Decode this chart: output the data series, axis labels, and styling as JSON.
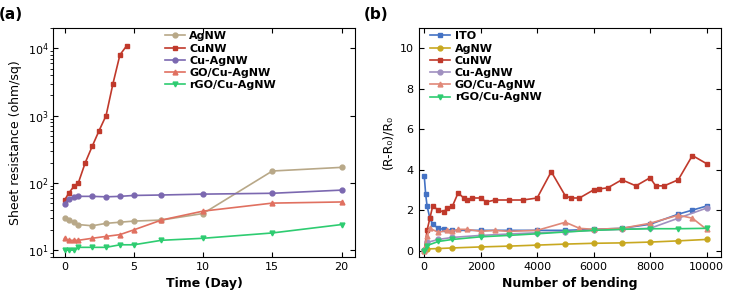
{
  "panel_a": {
    "title": "(a)",
    "xlabel": "Time (Day)",
    "ylabel": "Sheet resistance (ohm/sq)",
    "series": {
      "AgNW": {
        "color": "#b8a888",
        "marker": "o",
        "markersize": 3.5,
        "linestyle": "-",
        "linewidth": 1.2,
        "x": [
          0,
          0.3,
          0.7,
          1,
          2,
          3,
          4,
          5,
          7,
          10,
          15,
          20
        ],
        "y": [
          30,
          28,
          26,
          24,
          23,
          25,
          26,
          27,
          28,
          35,
          150,
          170
        ]
      },
      "CuNW": {
        "color": "#c0392b",
        "marker": "s",
        "markersize": 3.5,
        "linestyle": "-",
        "linewidth": 1.2,
        "x": [
          0,
          0.3,
          0.7,
          1,
          1.5,
          2,
          2.5,
          3,
          3.5,
          4,
          4.5
        ],
        "y": [
          55,
          70,
          90,
          100,
          200,
          350,
          600,
          1000,
          3000,
          8000,
          11000
        ]
      },
      "Cu-AgNW": {
        "color": "#7b68b0",
        "marker": "o",
        "markersize": 3.5,
        "linestyle": "-",
        "linewidth": 1.2,
        "x": [
          0,
          0.3,
          0.7,
          1,
          2,
          3,
          4,
          5,
          7,
          10,
          15,
          20
        ],
        "y": [
          48,
          58,
          62,
          63,
          63,
          62,
          63,
          65,
          66,
          68,
          70,
          78
        ]
      },
      "GO/Cu-AgNW": {
        "color": "#e07060",
        "marker": "^",
        "markersize": 3.5,
        "linestyle": "-",
        "linewidth": 1.2,
        "x": [
          0,
          0.3,
          0.7,
          1,
          2,
          3,
          4,
          5,
          7,
          10,
          15,
          20
        ],
        "y": [
          15,
          14,
          14,
          14,
          15,
          16,
          17,
          20,
          28,
          38,
          50,
          52
        ]
      },
      "rGO/Cu-AgNW": {
        "color": "#2ecc71",
        "marker": "v",
        "markersize": 3.5,
        "linestyle": "-",
        "linewidth": 1.2,
        "x": [
          0,
          0.3,
          0.7,
          1,
          2,
          3,
          4,
          5,
          7,
          10,
          15,
          20
        ],
        "y": [
          10,
          10,
          10,
          11,
          11,
          11,
          12,
          12,
          14,
          15,
          18,
          24
        ]
      }
    }
  },
  "panel_b": {
    "title": "(b)",
    "xlabel": "Number of bending",
    "ylabel": "(R-R₀)/R₀",
    "ylim": [
      -0.3,
      11
    ],
    "yticks": [
      0,
      2,
      4,
      6,
      8,
      10
    ],
    "xlim": [
      -200,
      10500
    ],
    "xticks": [
      0,
      2000,
      4000,
      6000,
      8000,
      10000
    ],
    "series": {
      "ITO": {
        "color": "#4472c4",
        "marker": "s",
        "markersize": 3.5,
        "linestyle": "-",
        "linewidth": 1.2,
        "x": [
          0,
          50,
          100,
          200,
          300,
          500,
          700,
          1000,
          2000,
          3000,
          4000,
          5000,
          6000,
          7000,
          8000,
          9000,
          9500,
          10000
        ],
        "y": [
          3.7,
          2.8,
          2.2,
          1.6,
          1.3,
          1.1,
          1.05,
          1.0,
          1.0,
          1.0,
          1.0,
          1.0,
          1.05,
          1.1,
          1.3,
          1.8,
          2.0,
          2.2
        ]
      },
      "AgNW": {
        "color": "#c8a820",
        "marker": "o",
        "markersize": 3.5,
        "linestyle": "-",
        "linewidth": 1.2,
        "x": [
          0,
          100,
          500,
          1000,
          2000,
          3000,
          4000,
          5000,
          6000,
          7000,
          8000,
          9000,
          10000
        ],
        "y": [
          0.05,
          0.08,
          0.1,
          0.13,
          0.18,
          0.22,
          0.27,
          0.32,
          0.36,
          0.38,
          0.42,
          0.48,
          0.55
        ]
      },
      "CuNW": {
        "color": "#c0392b",
        "marker": "s",
        "markersize": 3.5,
        "linestyle": "-",
        "linewidth": 1.2,
        "x": [
          0,
          100,
          200,
          300,
          500,
          700,
          800,
          1000,
          1200,
          1400,
          1500,
          1700,
          2000,
          2200,
          2500,
          3000,
          3500,
          4000,
          4500,
          5000,
          5200,
          5500,
          6000,
          6200,
          6500,
          7000,
          7500,
          8000,
          8200,
          8500,
          9000,
          9500,
          10000
        ],
        "y": [
          0.0,
          1.0,
          1.6,
          2.2,
          2.0,
          1.9,
          2.1,
          2.2,
          2.85,
          2.6,
          2.5,
          2.6,
          2.6,
          2.4,
          2.5,
          2.5,
          2.5,
          2.6,
          3.9,
          2.7,
          2.6,
          2.6,
          3.0,
          3.05,
          3.1,
          3.5,
          3.2,
          3.6,
          3.2,
          3.2,
          3.5,
          4.7,
          4.3
        ]
      },
      "Cu-AgNW": {
        "color": "#a090c0",
        "marker": "o",
        "markersize": 3.5,
        "linestyle": "-",
        "linewidth": 1.2,
        "x": [
          0,
          100,
          500,
          1000,
          2000,
          3000,
          4000,
          5000,
          6000,
          7000,
          8000,
          9000,
          10000
        ],
        "y": [
          0.05,
          0.4,
          0.55,
          0.65,
          0.75,
          0.82,
          0.88,
          0.93,
          1.0,
          1.05,
          1.1,
          1.6,
          2.1
        ]
      },
      "GO/Cu-AgNW": {
        "color": "#e08878",
        "marker": "^",
        "markersize": 3.5,
        "linestyle": "-",
        "linewidth": 1.2,
        "x": [
          0,
          100,
          200,
          500,
          800,
          1000,
          1200,
          1500,
          2000,
          2500,
          3000,
          4000,
          5000,
          5500,
          6000,
          7000,
          8000,
          9000,
          9500,
          10000
        ],
        "y": [
          0.0,
          0.7,
          1.1,
          0.9,
          1.0,
          0.95,
          1.05,
          1.05,
          0.95,
          1.0,
          0.95,
          1.0,
          1.4,
          1.1,
          1.05,
          1.1,
          1.35,
          1.75,
          1.6,
          1.05
        ]
      },
      "rGO/Cu-AgNW": {
        "color": "#2ecc71",
        "marker": "v",
        "markersize": 3.5,
        "linestyle": "-",
        "linewidth": 1.2,
        "x": [
          0,
          100,
          500,
          1000,
          2000,
          3000,
          4000,
          5000,
          6000,
          7000,
          8000,
          9000,
          10000
        ],
        "y": [
          0.0,
          0.25,
          0.45,
          0.55,
          0.68,
          0.75,
          0.83,
          0.92,
          1.0,
          1.05,
          1.08,
          1.08,
          1.1
        ]
      }
    }
  },
  "figure_bg": "#ffffff",
  "label_fontsize": 9,
  "tick_fontsize": 8,
  "legend_fontsize": 8,
  "panel_label_fontsize": 11
}
